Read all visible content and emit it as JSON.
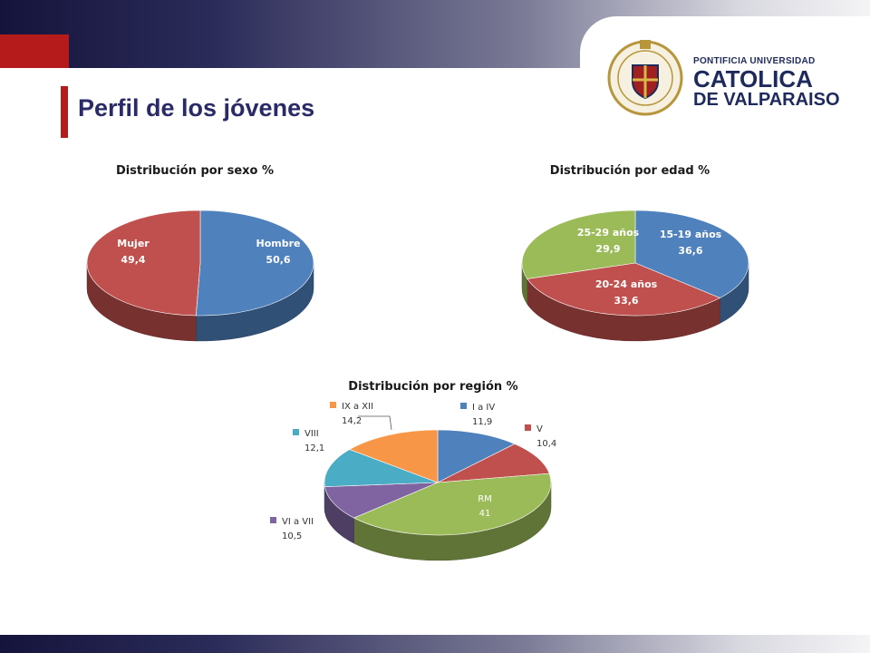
{
  "header": {
    "title": "Perfil de los jóvenes",
    "logo": {
      "line1": "PONTIFICIA UNIVERSIDAD",
      "line2": "CATOLICA",
      "line3": "DE VALPARAISO",
      "seal_text_top": "PONTIFICIA UNIVERSIDAD",
      "seal_text_bottom": "CATOLICA DE VALPARAISO"
    }
  },
  "colors": {
    "accent_red": "#b51b1b",
    "title_blue": "#2a2a68",
    "blue": "#4f81bd",
    "red": "#c0504d",
    "green": "#9bbb59",
    "purple": "#8064a2",
    "teal": "#4bacc6",
    "orange": "#f79646"
  },
  "chart_data": [
    {
      "type": "pie",
      "title": "Distribución por sexo %",
      "categories": [
        "Hombre",
        "Mujer"
      ],
      "values": [
        50.6,
        49.4
      ],
      "value_labels": [
        "50,6",
        "49,4"
      ],
      "colors": [
        "#4f81bd",
        "#c0504d"
      ],
      "style": "3d",
      "legend": "none"
    },
    {
      "type": "pie",
      "title": "Distribución por edad %",
      "categories": [
        "15-19 años",
        "20-24 años",
        "25-29 años"
      ],
      "values": [
        36.6,
        33.6,
        29.9
      ],
      "value_labels": [
        "36,6",
        "33,6",
        "29,9"
      ],
      "colors": [
        "#4f81bd",
        "#c0504d",
        "#9bbb59"
      ],
      "style": "3d",
      "legend": "none"
    },
    {
      "type": "pie",
      "title": "Distribución por región %",
      "categories": [
        "I a IV",
        "V",
        "RM",
        "VI a VII",
        "VIII",
        "IX a XII"
      ],
      "values": [
        11.9,
        10.4,
        41,
        10.5,
        12.1,
        14.2
      ],
      "value_labels": [
        "11,9",
        "10,4",
        "41",
        "10,5",
        "12,1",
        "14,2"
      ],
      "colors": [
        "#4f81bd",
        "#c0504d",
        "#9bbb59",
        "#8064a2",
        "#4bacc6",
        "#f79646"
      ],
      "style": "3d",
      "legend": "labels with color squares"
    }
  ]
}
